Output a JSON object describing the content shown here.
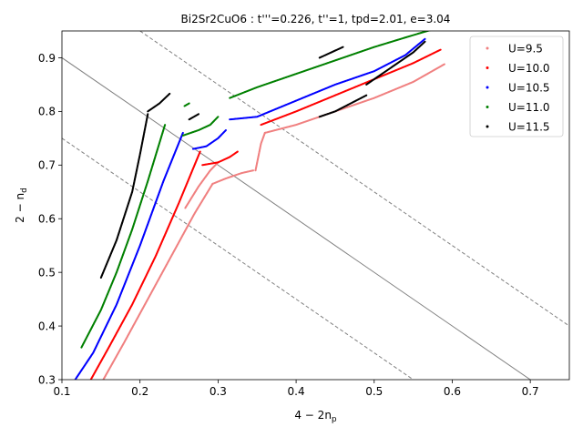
{
  "chart_data": {
    "type": "scatter",
    "title": "Bi2Sr2CuO6 : t'''=0.226, t''=1, tpd=2.01, e=3.04",
    "xlabel": "4 − 2n",
    "xlabel_sub": "p",
    "ylabel": "2 − n",
    "ylabel_sub": "d",
    "xlim": [
      0.1,
      0.75
    ],
    "ylim": [
      0.3,
      0.95
    ],
    "xticks": [
      "0.1",
      "0.2",
      "0.3",
      "0.4",
      "0.5",
      "0.6",
      "0.7"
    ],
    "yticks": [
      "0.3",
      "0.4",
      "0.5",
      "0.6",
      "0.7",
      "0.8",
      "0.9"
    ],
    "grid": false,
    "legend_position": "top-right",
    "reference_lines": [
      {
        "style": "solid",
        "color": "#808080",
        "x": [
          0.1,
          0.7
        ],
        "y": [
          0.9,
          0.3
        ]
      },
      {
        "style": "dashed",
        "color": "#808080",
        "x": [
          0.1,
          0.55
        ],
        "y": [
          0.75,
          0.3
        ]
      },
      {
        "style": "dashed",
        "color": "#808080",
        "x": [
          0.2,
          0.75
        ],
        "y": [
          0.95,
          0.4
        ]
      }
    ],
    "series": [
      {
        "name": "U=9.5",
        "color": "#f08080",
        "segments": [
          {
            "x": [
              0.153,
              0.18,
              0.21,
              0.24,
              0.27,
              0.293
            ],
            "y": [
              0.3,
              0.37,
              0.45,
              0.53,
              0.61,
              0.665
            ]
          },
          {
            "x": [
              0.293,
              0.31,
              0.33,
              0.345
            ],
            "y": [
              0.665,
              0.675,
              0.685,
              0.69
            ]
          },
          {
            "x": [
              0.258,
              0.275,
              0.29,
              0.3
            ],
            "y": [
              0.62,
              0.66,
              0.69,
              0.705
            ]
          },
          {
            "x": [
              0.348,
              0.355,
              0.36
            ],
            "y": [
              0.69,
              0.74,
              0.76
            ]
          },
          {
            "x": [
              0.36,
              0.4,
              0.45,
              0.5,
              0.55,
              0.59
            ],
            "y": [
              0.76,
              0.775,
              0.8,
              0.825,
              0.855,
              0.888
            ]
          }
        ]
      },
      {
        "name": "U=10.0",
        "color": "#ff0000",
        "segments": [
          {
            "x": [
              0.137,
              0.16,
              0.19,
              0.22,
              0.25,
              0.277
            ],
            "y": [
              0.3,
              0.36,
              0.44,
              0.53,
              0.63,
              0.725
            ]
          },
          {
            "x": [
              0.28,
              0.3,
              0.315,
              0.325
            ],
            "y": [
              0.7,
              0.705,
              0.715,
              0.725
            ]
          },
          {
            "x": [
              0.355,
              0.4,
              0.45,
              0.5,
              0.55,
              0.585
            ],
            "y": [
              0.775,
              0.8,
              0.83,
              0.86,
              0.89,
              0.915
            ]
          }
        ]
      },
      {
        "name": "U=10.5",
        "color": "#0000ff",
        "segments": [
          {
            "x": [
              0.117,
              0.14,
              0.17,
              0.2,
              0.23,
              0.255
            ],
            "y": [
              0.3,
              0.35,
              0.44,
              0.55,
              0.67,
              0.76
            ]
          },
          {
            "x": [
              0.268,
              0.285,
              0.3,
              0.31
            ],
            "y": [
              0.73,
              0.735,
              0.75,
              0.765
            ]
          },
          {
            "x": [
              0.315,
              0.35,
              0.4,
              0.45,
              0.5,
              0.54,
              0.565
            ],
            "y": [
              0.785,
              0.79,
              0.82,
              0.85,
              0.875,
              0.905,
              0.935
            ]
          }
        ]
      },
      {
        "name": "U=11.0",
        "color": "#008000",
        "segments": [
          {
            "x": [
              0.125,
              0.15,
              0.17,
              0.19,
              0.21,
              0.232
            ],
            "y": [
              0.36,
              0.43,
              0.5,
              0.58,
              0.67,
              0.775
            ]
          },
          {
            "x": [
              0.255,
              0.275,
              0.29,
              0.3
            ],
            "y": [
              0.755,
              0.765,
              0.775,
              0.79
            ]
          },
          {
            "x": [
              0.257,
              0.263
            ],
            "y": [
              0.81,
              0.815
            ]
          },
          {
            "x": [
              0.315,
              0.35,
              0.4,
              0.45,
              0.5,
              0.545,
              0.58
            ],
            "y": [
              0.825,
              0.845,
              0.87,
              0.895,
              0.92,
              0.94,
              0.955
            ]
          }
        ]
      },
      {
        "name": "U=11.5",
        "color": "#000000",
        "segments": [
          {
            "x": [
              0.15,
              0.17,
              0.19,
              0.2,
              0.21
            ],
            "y": [
              0.49,
              0.56,
              0.65,
              0.72,
              0.795
            ]
          },
          {
            "x": [
              0.21,
              0.225,
              0.238
            ],
            "y": [
              0.8,
              0.815,
              0.833
            ]
          },
          {
            "x": [
              0.263,
              0.275
            ],
            "y": [
              0.785,
              0.795
            ]
          },
          {
            "x": [
              0.43,
              0.45,
              0.47,
              0.49
            ],
            "y": [
              0.79,
              0.8,
              0.815,
              0.83
            ]
          },
          {
            "x": [
              0.49,
              0.52,
              0.55,
              0.565
            ],
            "y": [
              0.85,
              0.88,
              0.91,
              0.93
            ]
          },
          {
            "x": [
              0.43,
              0.445,
              0.46
            ],
            "y": [
              0.9,
              0.91,
              0.92
            ]
          }
        ]
      }
    ]
  }
}
